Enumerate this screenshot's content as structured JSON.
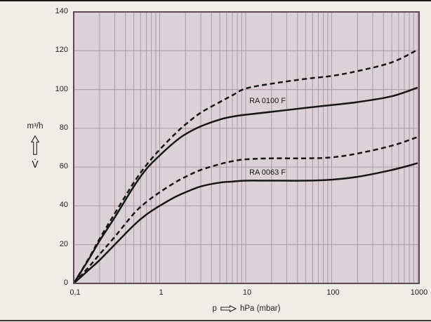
{
  "page": {
    "background": "#f0ede9",
    "border_color": "#1b1b1b"
  },
  "chart_data": {
    "type": "line",
    "title": "",
    "x_scale": "log",
    "xlim": [
      0.1,
      1000
    ],
    "ylim": [
      0,
      140
    ],
    "grid": "on",
    "legend_position": "inline-annotations",
    "xlabel_prefix": "p",
    "xlabel_unit": "hPa (mbar)",
    "ylabel_unit": "m³/h",
    "ylabel_symbol": "V̇",
    "x_ticks": [
      {
        "value": 0.1,
        "label": "0,1"
      },
      {
        "value": 1,
        "label": "1"
      },
      {
        "value": 10,
        "label": "10"
      },
      {
        "value": 100,
        "label": "100"
      },
      {
        "value": 1000,
        "label": "1000"
      }
    ],
    "y_ticks": [
      {
        "value": 0,
        "label": "0"
      },
      {
        "value": 20,
        "label": "20"
      },
      {
        "value": 40,
        "label": "40"
      },
      {
        "value": 60,
        "label": "60"
      },
      {
        "value": 80,
        "label": "80"
      },
      {
        "value": 100,
        "label": "100"
      },
      {
        "value": 120,
        "label": "120"
      },
      {
        "value": 140,
        "label": "140"
      }
    ],
    "series": [
      {
        "name": "RA 0100 F (dashed)",
        "style": "dashed",
        "points": [
          [
            0.1,
            0
          ],
          [
            0.15,
            13
          ],
          [
            0.2,
            23
          ],
          [
            0.3,
            36
          ],
          [
            0.5,
            52
          ],
          [
            0.7,
            61
          ],
          [
            1,
            69
          ],
          [
            1.5,
            77
          ],
          [
            2,
            82
          ],
          [
            3,
            88
          ],
          [
            5,
            93.5
          ],
          [
            7,
            97
          ],
          [
            10,
            100.5
          ],
          [
            20,
            103
          ],
          [
            50,
            105.5
          ],
          [
            100,
            107
          ],
          [
            200,
            109.5
          ],
          [
            500,
            114
          ],
          [
            1000,
            120.5
          ]
        ]
      },
      {
        "name": "RA 0100 F",
        "style": "solid",
        "points": [
          [
            0.1,
            0
          ],
          [
            0.15,
            12.5
          ],
          [
            0.2,
            22
          ],
          [
            0.3,
            34
          ],
          [
            0.5,
            50
          ],
          [
            0.7,
            59
          ],
          [
            1,
            66
          ],
          [
            1.5,
            73
          ],
          [
            2,
            77
          ],
          [
            3,
            81
          ],
          [
            5,
            84.5
          ],
          [
            7,
            86
          ],
          [
            10,
            87
          ],
          [
            20,
            88.5
          ],
          [
            50,
            90.5
          ],
          [
            100,
            92
          ],
          [
            200,
            93.5
          ],
          [
            500,
            96.5
          ],
          [
            1000,
            101
          ]
        ]
      },
      {
        "name": "RA 0063 F (dashed)",
        "style": "dashed",
        "points": [
          [
            0.1,
            0
          ],
          [
            0.15,
            8.5
          ],
          [
            0.2,
            15
          ],
          [
            0.3,
            24
          ],
          [
            0.5,
            36
          ],
          [
            0.7,
            42
          ],
          [
            1,
            47
          ],
          [
            1.5,
            52
          ],
          [
            2,
            55
          ],
          [
            3,
            58.5
          ],
          [
            5,
            61.5
          ],
          [
            7,
            63
          ],
          [
            10,
            64
          ],
          [
            20,
            64.5
          ],
          [
            50,
            64.5
          ],
          [
            100,
            65
          ],
          [
            200,
            67
          ],
          [
            500,
            71
          ],
          [
            1000,
            75.5
          ]
        ]
      },
      {
        "name": "RA 0063 F",
        "style": "solid",
        "points": [
          [
            0.1,
            0
          ],
          [
            0.15,
            7
          ],
          [
            0.2,
            12
          ],
          [
            0.3,
            20
          ],
          [
            0.5,
            30
          ],
          [
            0.7,
            35.5
          ],
          [
            1,
            40
          ],
          [
            1.5,
            44.5
          ],
          [
            2,
            47
          ],
          [
            3,
            50
          ],
          [
            5,
            52
          ],
          [
            7,
            52.5
          ],
          [
            10,
            53
          ],
          [
            20,
            53
          ],
          [
            50,
            53
          ],
          [
            100,
            53.5
          ],
          [
            200,
            55
          ],
          [
            500,
            58.5
          ],
          [
            1000,
            62
          ]
        ]
      }
    ],
    "annotations": [
      {
        "text": "RA 0100 F",
        "x": 11,
        "y": 94
      },
      {
        "text": "RA 0063 F",
        "x": 11,
        "y": 57
      }
    ],
    "colors": {
      "plot_bg": "#dbd2d7",
      "grid": "#ae98a6",
      "frame": "#5d4956",
      "curve": "#161616",
      "text": "#222222"
    }
  }
}
